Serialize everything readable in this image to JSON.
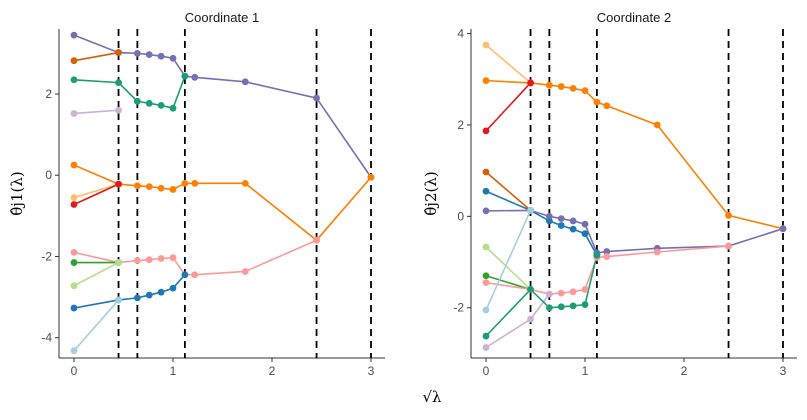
{
  "chart_data": {
    "type": "line",
    "xlabel": "√λ",
    "breakpoints": [
      0.45,
      0.64,
      1.12,
      2.45,
      3.0
    ],
    "panels": [
      {
        "title": "Coordinate  1",
        "ylabel": "θ̂j1(λ)",
        "xlim": [
          0,
          3
        ],
        "ylim": [
          -4.5,
          3.6
        ],
        "xticks": [
          0,
          1,
          2,
          3
        ],
        "yticks": [
          -4,
          -2,
          0,
          2
        ],
        "series": [
          {
            "color": "#7570b3",
            "points": [
              [
                0,
                3.45
              ],
              [
                0.45,
                3.02
              ],
              [
                0.64,
                3.0
              ],
              [
                0.76,
                2.97
              ],
              [
                0.88,
                2.93
              ],
              [
                1.0,
                2.88
              ],
              [
                1.12,
                2.44
              ],
              [
                1.22,
                2.41
              ],
              [
                1.73,
                2.3
              ],
              [
                2.45,
                1.9
              ],
              [
                3.0,
                -0.05
              ]
            ]
          },
          {
            "color": "#d95f02",
            "points": [
              [
                0,
                2.82
              ],
              [
                0.45,
                3.02
              ]
            ]
          },
          {
            "color": "#1b9e77",
            "points": [
              [
                0,
                2.35
              ],
              [
                0.45,
                2.28
              ],
              [
                0.64,
                1.82
              ],
              [
                0.76,
                1.77
              ],
              [
                0.88,
                1.72
              ],
              [
                1.0,
                1.65
              ],
              [
                1.12,
                2.44
              ]
            ]
          },
          {
            "color": "#cab2d6",
            "points": [
              [
                0,
                1.52
              ],
              [
                0.45,
                1.6
              ]
            ]
          },
          {
            "color": "#ff7f00",
            "points": [
              [
                0,
                0.25
              ],
              [
                0.45,
                -0.22
              ],
              [
                0.64,
                -0.26
              ],
              [
                0.76,
                -0.28
              ],
              [
                0.88,
                -0.32
              ],
              [
                1.0,
                -0.35
              ],
              [
                1.12,
                -0.2
              ],
              [
                1.22,
                -0.2
              ],
              [
                1.73,
                -0.2
              ],
              [
                2.45,
                -1.6
              ],
              [
                3.0,
                -0.05
              ]
            ]
          },
          {
            "color": "#fdbf6f",
            "points": [
              [
                0,
                -0.55
              ],
              [
                0.45,
                -0.22
              ]
            ]
          },
          {
            "color": "#e31a1c",
            "points": [
              [
                0,
                -0.72
              ],
              [
                0.45,
                -0.22
              ]
            ]
          },
          {
            "color": "#fb9a99",
            "points": [
              [
                0,
                -1.9
              ],
              [
                0.45,
                -2.15
              ],
              [
                0.64,
                -2.1
              ],
              [
                0.76,
                -2.08
              ],
              [
                0.88,
                -2.05
              ],
              [
                1.0,
                -2.03
              ],
              [
                1.12,
                -2.45
              ],
              [
                1.22,
                -2.45
              ],
              [
                1.73,
                -2.37
              ],
              [
                2.45,
                -1.6
              ]
            ]
          },
          {
            "color": "#33a02c",
            "points": [
              [
                0,
                -2.15
              ],
              [
                0.45,
                -2.15
              ]
            ]
          },
          {
            "color": "#b2df8a",
            "points": [
              [
                0,
                -2.72
              ],
              [
                0.45,
                -2.15
              ]
            ]
          },
          {
            "color": "#1f78b4",
            "points": [
              [
                0,
                -3.27
              ],
              [
                0.45,
                -3.07
              ],
              [
                0.64,
                -3.02
              ],
              [
                0.76,
                -2.95
              ],
              [
                0.88,
                -2.88
              ],
              [
                1.0,
                -2.78
              ],
              [
                1.12,
                -2.45
              ]
            ]
          },
          {
            "color": "#a6cee3",
            "points": [
              [
                0,
                -4.32
              ],
              [
                0.45,
                -3.07
              ]
            ]
          }
        ]
      },
      {
        "title": "Coordinate  2",
        "ylabel": "θ̂j2(λ)",
        "xlim": [
          0,
          3
        ],
        "ylim": [
          -3.1,
          4.1
        ],
        "xticks": [
          0,
          1,
          2,
          3
        ],
        "yticks": [
          -2,
          0,
          2,
          4
        ],
        "series": [
          {
            "color": "#fdbf6f",
            "points": [
              [
                0,
                3.75
              ],
              [
                0.45,
                2.92
              ]
            ]
          },
          {
            "color": "#ff7f00",
            "points": [
              [
                0,
                2.97
              ],
              [
                0.45,
                2.92
              ],
              [
                0.64,
                2.87
              ],
              [
                0.76,
                2.84
              ],
              [
                0.88,
                2.8
              ],
              [
                1.0,
                2.75
              ],
              [
                1.12,
                2.5
              ],
              [
                1.22,
                2.42
              ],
              [
                1.73,
                2.0
              ],
              [
                2.45,
                0.02
              ],
              [
                3.0,
                -0.27
              ]
            ]
          },
          {
            "color": "#e31a1c",
            "points": [
              [
                0,
                1.87
              ],
              [
                0.45,
                2.92
              ]
            ]
          },
          {
            "color": "#d95f02",
            "points": [
              [
                0,
                0.97
              ],
              [
                0.45,
                0.13
              ]
            ]
          },
          {
            "color": "#1f78b4",
            "points": [
              [
                0,
                0.55
              ],
              [
                0.45,
                0.13
              ],
              [
                0.64,
                -0.1
              ],
              [
                0.76,
                -0.2
              ],
              [
                0.88,
                -0.28
              ],
              [
                1.0,
                -0.38
              ],
              [
                1.12,
                -0.85
              ]
            ]
          },
          {
            "color": "#7570b3",
            "points": [
              [
                0,
                0.12
              ],
              [
                0.45,
                0.13
              ],
              [
                0.64,
                0.0
              ],
              [
                0.76,
                -0.05
              ],
              [
                0.88,
                -0.1
              ],
              [
                1.0,
                -0.17
              ],
              [
                1.12,
                -0.8
              ],
              [
                1.22,
                -0.77
              ],
              [
                1.73,
                -0.7
              ],
              [
                2.45,
                -0.65
              ],
              [
                3.0,
                -0.27
              ]
            ]
          },
          {
            "color": "#b2df8a",
            "points": [
              [
                0,
                -0.67
              ],
              [
                0.45,
                -1.6
              ]
            ]
          },
          {
            "color": "#33a02c",
            "points": [
              [
                0,
                -1.3
              ],
              [
                0.45,
                -1.6
              ]
            ]
          },
          {
            "color": "#fb9a99",
            "points": [
              [
                0,
                -1.45
              ],
              [
                0.45,
                -1.6
              ],
              [
                0.64,
                -1.7
              ],
              [
                0.76,
                -1.68
              ],
              [
                0.88,
                -1.65
              ],
              [
                1.0,
                -1.6
              ],
              [
                1.12,
                -0.9
              ],
              [
                1.22,
                -0.88
              ],
              [
                1.73,
                -0.78
              ],
              [
                2.45,
                -0.65
              ]
            ]
          },
          {
            "color": "#a6cee3",
            "points": [
              [
                0,
                -2.05
              ],
              [
                0.45,
                0.13
              ]
            ]
          },
          {
            "color": "#cab2d6",
            "points": [
              [
                0,
                -2.87
              ],
              [
                0.45,
                -2.25
              ],
              [
                0.64,
                -1.7
              ]
            ]
          },
          {
            "color": "#1b9e77",
            "points": [
              [
                0,
                -2.62
              ],
              [
                0.45,
                -1.6
              ],
              [
                0.64,
                -2.0
              ],
              [
                0.76,
                -1.98
              ],
              [
                0.88,
                -1.96
              ],
              [
                1.0,
                -1.93
              ],
              [
                1.12,
                -0.85
              ]
            ]
          }
        ]
      }
    ]
  }
}
